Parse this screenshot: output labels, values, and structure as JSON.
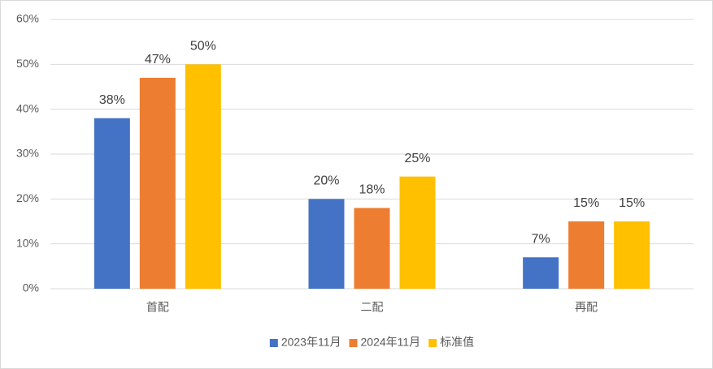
{
  "chart_data": {
    "type": "bar",
    "categories": [
      "首配",
      "二配",
      "再配"
    ],
    "series": [
      {
        "name": "2023年11月",
        "color": "#4472c4",
        "values": [
          38,
          20,
          7
        ],
        "value_labels": [
          "38%",
          "20%",
          "7%"
        ]
      },
      {
        "name": "2024年11月",
        "color": "#ed7d31",
        "values": [
          47,
          18,
          15
        ],
        "value_labels": [
          "47%",
          "18%",
          "15%"
        ]
      },
      {
        "name": "标准值",
        "color": "#ffc000",
        "values": [
          50,
          25,
          15
        ],
        "value_labels": [
          "50%",
          "25%",
          "15%"
        ]
      }
    ],
    "ylim": [
      0,
      60
    ],
    "yticks": [
      {
        "value": 0,
        "label": "0%"
      },
      {
        "value": 10,
        "label": "10%"
      },
      {
        "value": 20,
        "label": "20%"
      },
      {
        "value": 30,
        "label": "30%"
      },
      {
        "value": 40,
        "label": "40%"
      },
      {
        "value": 50,
        "label": "50%"
      },
      {
        "value": 60,
        "label": "60%"
      }
    ],
    "grid": true,
    "legend": "bottom"
  }
}
